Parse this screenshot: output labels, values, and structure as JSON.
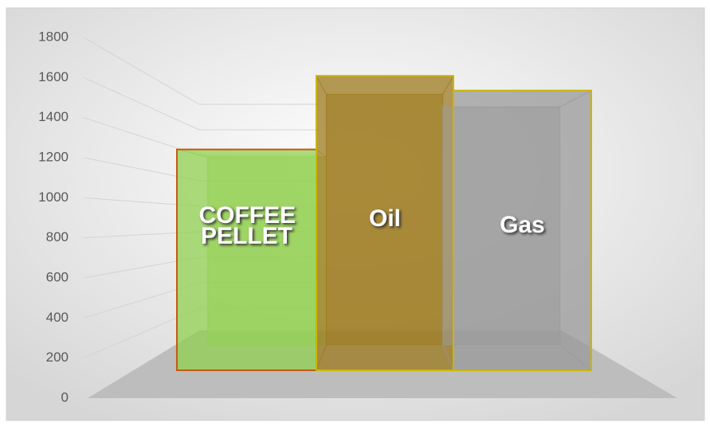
{
  "chart_data": {
    "type": "bar3d",
    "categories": [
      "COFFEE PELLET",
      "Oil",
      "Gas"
    ],
    "values": [
      1200,
      1600,
      1520
    ],
    "colors": [
      "#92d050",
      "#9c7a1e",
      "#9a9a9a"
    ],
    "edge_colors": [
      "#c55a11",
      "#c9b600",
      "#c9b600"
    ],
    "ylim": [
      0,
      1800
    ],
    "yticks": [
      0,
      200,
      400,
      600,
      800,
      1000,
      1200,
      1400,
      1600,
      1800
    ],
    "grid": true
  }
}
